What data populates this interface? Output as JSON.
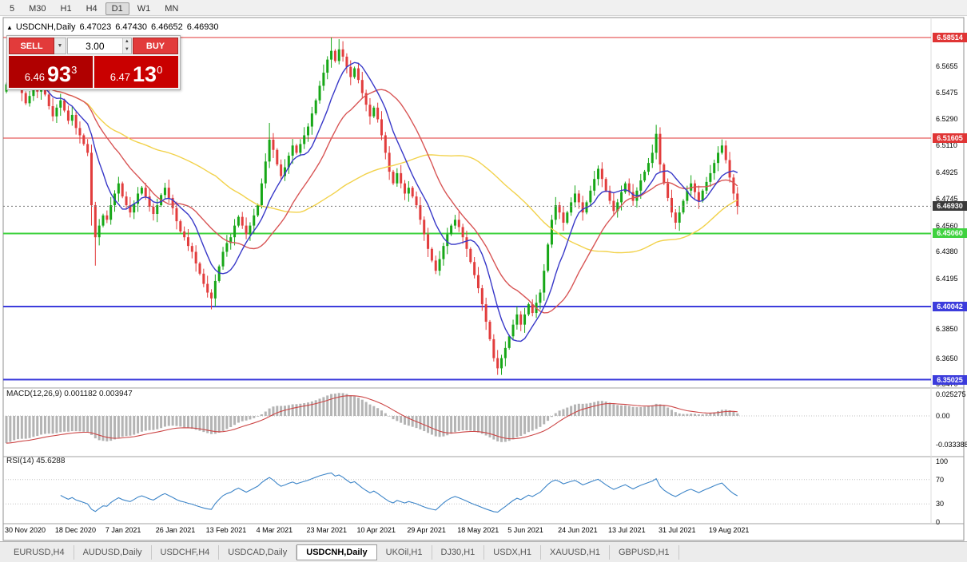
{
  "toolbar": {
    "timeframes": [
      "5",
      "M30",
      "H1",
      "H4",
      "D1",
      "W1",
      "MN"
    ],
    "active_index": 4
  },
  "chart": {
    "symbol_title": "USDCNH,Daily",
    "open": "6.47023",
    "high": "6.47430",
    "low": "6.46652",
    "close": "6.46930"
  },
  "trade_widget": {
    "sell_label": "SELL",
    "buy_label": "BUY",
    "lot_size": "3.00",
    "sell_price_big": "6.46",
    "sell_price_pips": "93",
    "sell_price_sup": "3",
    "buy_price_big": "6.47",
    "buy_price_pips": "13",
    "buy_price_sup": "0"
  },
  "macd": {
    "label": "MACD(12,26,9) 0.001182 0.003947",
    "scale": [
      "0.025275",
      "0.00",
      "-0.033388"
    ]
  },
  "rsi": {
    "label": "RSI(14) 45.6288",
    "scale": [
      "100",
      "70",
      "30",
      "0"
    ]
  },
  "y_axis_labels": [
    "6.5655",
    "6.5475",
    "6.5290",
    "6.5110",
    "6.4925",
    "6.4745",
    "6.4560",
    "6.4380",
    "6.4195",
    "6.3850",
    "6.3650",
    "6.3470"
  ],
  "x_axis": {
    "labels": [
      "30 Nov 2020",
      "18 Dec 2020",
      "7 Jan 2021",
      "26 Jan 2021",
      "13 Feb 2021",
      "4 Mar 2021",
      "23 Mar 2021",
      "10 Apr 2021",
      "29 Apr 2021",
      "18 May 2021",
      "5 Jun 2021",
      "24 Jun 2021",
      "13 Jul 2021",
      "31 Jul 2021",
      "19 Aug 2021"
    ],
    "indices": [
      0,
      13,
      26,
      39,
      52,
      65,
      78,
      91,
      104,
      117,
      130,
      143,
      156,
      169,
      182
    ]
  },
  "tabs": {
    "items": [
      "EURUSD,H4",
      "AUDUSD,Daily",
      "USDCHF,H4",
      "USDCAD,Daily",
      "USDCNH,Daily",
      "UKOil,H1",
      "DJ30,H1",
      "USDX,H1",
      "XAUUSD,H1",
      "GBPUSD,H1"
    ],
    "active_index": 4
  },
  "chart_data": {
    "type": "candlestick",
    "title": "USDCNH,Daily",
    "ylim": [
      6.346,
      6.597
    ],
    "first_open": 6.548,
    "closes": [
      6.553,
      6.561,
      6.5655,
      6.558,
      6.547,
      6.54,
      6.545,
      6.552,
      6.548,
      6.553,
      6.546,
      6.538,
      6.531,
      6.537,
      6.542,
      6.535,
      6.528,
      6.532,
      6.523,
      6.518,
      6.512,
      6.506,
      6.47,
      6.448,
      6.456,
      6.463,
      6.46,
      6.47,
      6.478,
      6.485,
      6.476,
      6.47,
      6.465,
      6.471,
      6.478,
      6.482,
      6.476,
      6.469,
      6.464,
      6.47,
      6.477,
      6.482,
      6.475,
      6.468,
      6.459,
      6.452,
      6.448,
      6.442,
      6.438,
      6.43,
      6.423,
      6.416,
      6.41,
      6.406,
      6.418,
      6.428,
      6.438,
      6.444,
      6.448,
      6.456,
      6.462,
      6.456,
      6.45,
      6.456,
      6.463,
      6.47,
      6.485,
      6.5,
      6.515,
      6.508,
      6.498,
      6.49,
      6.496,
      6.504,
      6.511,
      6.506,
      6.512,
      6.518,
      6.524,
      6.533,
      6.542,
      6.552,
      6.561,
      6.57,
      6.576,
      6.569,
      6.577,
      6.572,
      6.565,
      6.558,
      6.564,
      6.556,
      6.547,
      6.539,
      6.531,
      6.537,
      6.529,
      6.518,
      6.506,
      6.493,
      6.485,
      6.492,
      6.485,
      6.478,
      6.482,
      6.476,
      6.47,
      6.46,
      6.45,
      6.44,
      6.432,
      6.425,
      6.433,
      6.442,
      6.45,
      6.456,
      6.46,
      6.455,
      6.448,
      6.44,
      6.431,
      6.422,
      6.413,
      6.402,
      6.39,
      6.378,
      6.365,
      6.358,
      6.365,
      6.372,
      6.38,
      6.388,
      6.395,
      6.388,
      6.395,
      6.402,
      6.396,
      6.403,
      6.41,
      6.425,
      6.443,
      6.46,
      6.47,
      6.465,
      6.458,
      6.465,
      6.472,
      6.478,
      6.472,
      6.465,
      6.472,
      6.48,
      6.488,
      6.495,
      6.488,
      6.48,
      6.473,
      6.466,
      6.472,
      6.479,
      6.485,
      6.479,
      6.473,
      6.48,
      6.487,
      6.493,
      6.499,
      6.506,
      6.519,
      6.498,
      6.485,
      6.475,
      6.465,
      6.458,
      6.465,
      6.473,
      6.48,
      6.485,
      6.479,
      6.473,
      6.48,
      6.486,
      6.492,
      6.499,
      6.506,
      6.511,
      6.501,
      6.489,
      6.478,
      6.4693
    ],
    "overrides": {
      "2": {
        "high": 6.5712
      },
      "22": {
        "low": 6.456
      },
      "23": {
        "low": 6.4285
      },
      "53": {
        "low": 6.3985
      },
      "68": {
        "high": 6.5265
      },
      "84": {
        "high": 6.5851
      },
      "86": {
        "high": 6.584
      },
      "127": {
        "low": 6.3535
      },
      "168": {
        "high": 6.5252
      },
      "185": {
        "high": 6.5152
      }
    },
    "moving_averages": [
      {
        "period": 55,
        "color": "#f2d24b"
      },
      {
        "period": 21,
        "color": "#d85555"
      },
      {
        "period": 9,
        "color": "#3838c8"
      }
    ],
    "levels": [
      {
        "price": 6.58514,
        "tag": "6.58514",
        "color": "#e03535",
        "width": 1
      },
      {
        "price": 6.51605,
        "tag": "6.51605",
        "color": "#e03535",
        "width": 1
      },
      {
        "price": 6.4506,
        "tag": "6.45060",
        "color": "#3fd23f",
        "width": 2
      },
      {
        "price": 6.40042,
        "tag": "6.40042",
        "color": "#3c3cdc",
        "width": 2
      },
      {
        "price": 6.35025,
        "tag": "6.35025",
        "color": "#3c3cdc",
        "width": 2
      }
    ],
    "current_price": {
      "price": 6.4693,
      "tag": "6.46930",
      "tag_color": "#3a3a3a"
    },
    "macd_params": {
      "fast": 12,
      "slow": 26,
      "signal": 9,
      "current": "0.001182",
      "current_signal": "0.003947"
    },
    "rsi_params": {
      "period": 14,
      "current": "45.6288",
      "levels": [
        70,
        30
      ]
    },
    "colors": {
      "up": "#17a717",
      "down": "#e23d3d",
      "macd_hist": "#b4b4b4",
      "macd_signal": "#cc4646",
      "rsi_line": "#3d85c8"
    }
  }
}
